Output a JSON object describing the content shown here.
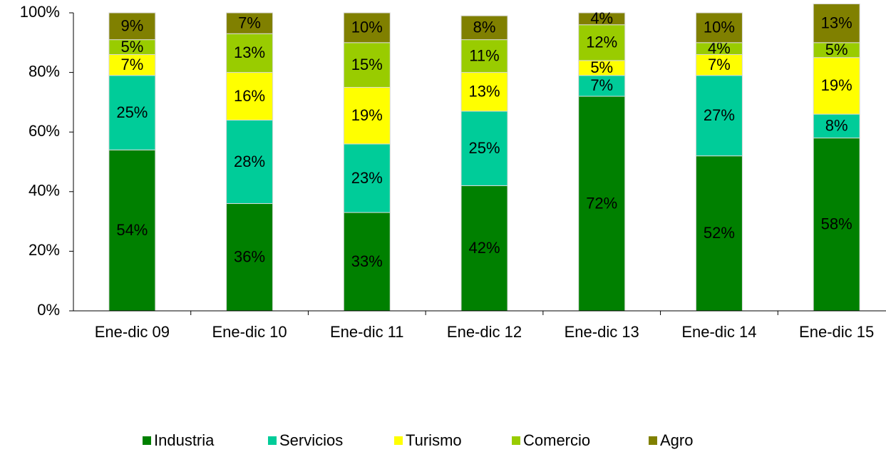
{
  "chart_data": {
    "type": "stacked_bar",
    "categories": [
      "Ene-dic 09",
      "Ene-dic 10",
      "Ene-dic 11",
      "Ene-dic 12",
      "Ene-dic 13",
      "Ene-dic 14",
      "Ene-dic 15"
    ],
    "series": [
      {
        "name": "Industria",
        "color": "#008000",
        "values": [
          54,
          36,
          33,
          42,
          72,
          52,
          58
        ],
        "value_labels": [
          "54%",
          "36%",
          "33%",
          "42%",
          "72%",
          "52%",
          "58%"
        ]
      },
      {
        "name": "Servicios",
        "color": "#00cc99",
        "values": [
          25,
          28,
          23,
          25,
          7,
          27,
          8
        ],
        "value_labels": [
          "25%",
          "28%",
          "23%",
          "25%",
          "7%",
          "27%",
          "8%"
        ]
      },
      {
        "name": "Turismo",
        "color": "#ffff00",
        "values": [
          7,
          16,
          19,
          13,
          5,
          7,
          19
        ],
        "value_labels": [
          "7%",
          "16%",
          "19%",
          "13%",
          "5%",
          "7%",
          "19%"
        ]
      },
      {
        "name": "Comercio",
        "color": "#99cc00",
        "values": [
          5,
          13,
          15,
          11,
          12,
          4,
          5
        ],
        "value_labels": [
          "5%",
          "13%",
          "15%",
          "11%",
          "12%",
          "4%",
          "5%"
        ]
      },
      {
        "name": "Agro",
        "color": "#808000",
        "values": [
          9,
          7,
          10,
          8,
          4,
          10,
          13
        ],
        "value_labels": [
          "9%",
          "7%",
          "10%",
          "8%",
          "4%",
          "10%",
          "13%"
        ]
      }
    ],
    "ylim": [
      0,
      100
    ],
    "yticks": [
      {
        "value": 0,
        "label": "0%"
      },
      {
        "value": 20,
        "label": "20%"
      },
      {
        "value": 40,
        "label": "40%"
      },
      {
        "value": 60,
        "label": "60%"
      },
      {
        "value": 80,
        "label": "80%"
      },
      {
        "value": 100,
        "label": "100%"
      }
    ],
    "legend": "bottom"
  }
}
